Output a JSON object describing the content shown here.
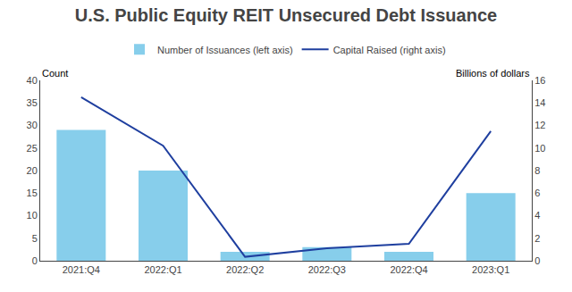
{
  "chart_data": {
    "type": "bar",
    "title": "U.S. Public Equity REIT Unsecured Debt Issuance",
    "categories": [
      "2021:Q4",
      "2022:Q1",
      "2022:Q2",
      "2022:Q3",
      "2022:Q4",
      "2023:Q1"
    ],
    "series": [
      {
        "name": "Number of Issuances (left axis)",
        "type": "bar",
        "color": "#87CEEB",
        "values": [
          29,
          20,
          2,
          3,
          2,
          15
        ]
      },
      {
        "name": "Capital Raised (right axis)",
        "type": "line",
        "color": "#1f3f9f",
        "axis": "y2",
        "values": [
          14.5,
          10.2,
          0.35,
          1.1,
          1.5,
          11.5
        ]
      }
    ],
    "ylabel": "Count",
    "y2label": "Billions of dollars",
    "ylim": [
      0,
      40
    ],
    "yticks": [
      0,
      5,
      10,
      15,
      20,
      25,
      30,
      35,
      40
    ],
    "y2lim": [
      0,
      16
    ],
    "y2ticks": [
      0,
      2,
      4,
      6,
      8,
      10,
      12,
      14,
      16
    ],
    "grid": false,
    "legend": "top"
  }
}
